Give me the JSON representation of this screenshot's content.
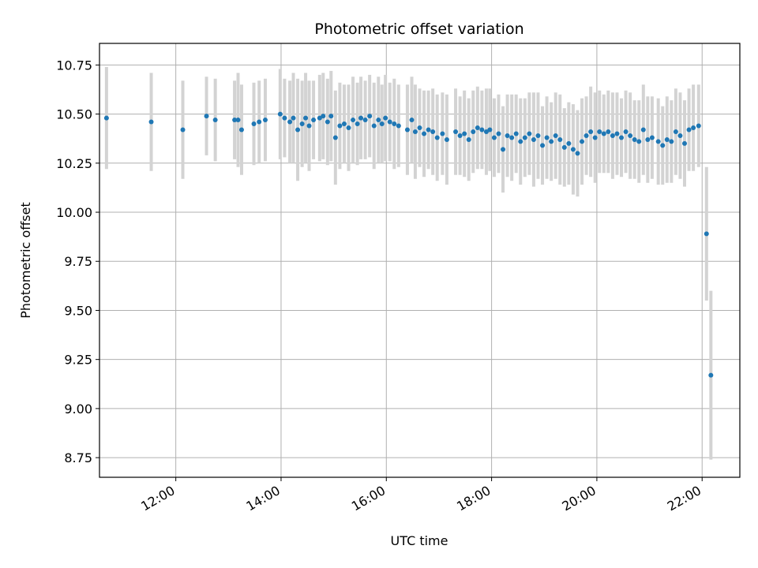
{
  "chart_data": {
    "type": "scatter",
    "title": "Photometric offset variation",
    "xlabel": "UTC time",
    "ylabel": "Photometric offset",
    "x_ticks": [
      "12:00",
      "14:00",
      "16:00",
      "18:00",
      "20:00",
      "22:00"
    ],
    "y_ticks": [
      "8.75",
      "9.00",
      "9.25",
      "9.50",
      "9.75",
      "10.00",
      "10.25",
      "10.50",
      "10.75"
    ],
    "xlim": [
      "10:33",
      "22:43"
    ],
    "ylim": [
      8.65,
      10.86
    ],
    "grid": true,
    "colors": {
      "point": "#1f77b4",
      "errorbar": "#d3d3d3",
      "grid": "#b0b0b0"
    },
    "series": [
      {
        "x": [
          "10:41",
          "11:32",
          "12:08",
          "12:35",
          "12:45",
          "13:07",
          "13:11",
          "13:15",
          "13:29",
          "13:35",
          "13:42",
          "13:59",
          "14:04",
          "14:10",
          "14:14",
          "14:19",
          "14:24",
          "14:28",
          "14:32",
          "14:37",
          "14:44",
          "14:48",
          "14:53",
          "14:57",
          "15:02",
          "15:07",
          "15:12",
          "15:17",
          "15:22",
          "15:27",
          "15:31",
          "15:36",
          "15:41",
          "15:46",
          "15:51",
          "15:55",
          "15:59",
          "16:04",
          "16:09",
          "16:14",
          "16:24",
          "16:29",
          "16:33",
          "16:38",
          "16:43",
          "16:48",
          "16:53",
          "16:58",
          "17:04",
          "17:09",
          "17:19",
          "17:24",
          "17:29",
          "17:34",
          "17:39",
          "17:44",
          "17:49",
          "17:54",
          "17:58",
          "18:03",
          "18:08",
          "18:13",
          "18:18",
          "18:23",
          "18:28",
          "18:33",
          "18:38",
          "18:43",
          "18:48",
          "18:53",
          "18:58",
          "19:03",
          "19:08",
          "19:13",
          "19:18",
          "19:23",
          "19:28",
          "19:33",
          "19:38",
          "19:43",
          "19:48",
          "19:53",
          "19:58",
          "20:03",
          "20:08",
          "20:13",
          "20:18",
          "20:23",
          "20:28",
          "20:33",
          "20:38",
          "20:43",
          "20:48",
          "20:53",
          "20:58",
          "21:03",
          "21:10",
          "21:15",
          "21:20",
          "21:25",
          "21:30",
          "21:35",
          "21:40",
          "21:45",
          "21:50",
          "21:56",
          "22:05",
          "22:10"
        ],
        "y": [
          10.48,
          10.46,
          10.42,
          10.49,
          10.47,
          10.47,
          10.47,
          10.42,
          10.45,
          10.46,
          10.47,
          10.5,
          10.48,
          10.46,
          10.48,
          10.42,
          10.45,
          10.48,
          10.44,
          10.47,
          10.48,
          10.49,
          10.46,
          10.49,
          10.38,
          10.44,
          10.45,
          10.43,
          10.47,
          10.45,
          10.48,
          10.47,
          10.49,
          10.44,
          10.47,
          10.45,
          10.48,
          10.46,
          10.45,
          10.44,
          10.42,
          10.47,
          10.41,
          10.43,
          10.4,
          10.42,
          10.41,
          10.38,
          10.4,
          10.37,
          10.41,
          10.39,
          10.4,
          10.37,
          10.41,
          10.43,
          10.42,
          10.41,
          10.42,
          10.38,
          10.4,
          10.32,
          10.39,
          10.38,
          10.4,
          10.36,
          10.38,
          10.4,
          10.37,
          10.39,
          10.34,
          10.38,
          10.36,
          10.39,
          10.37,
          10.33,
          10.35,
          10.32,
          10.3,
          10.36,
          10.39,
          10.41,
          10.38,
          10.41,
          10.4,
          10.41,
          10.39,
          10.4,
          10.38,
          10.41,
          10.39,
          10.37,
          10.36,
          10.42,
          10.37,
          10.38,
          10.36,
          10.34,
          10.37,
          10.36,
          10.41,
          10.39,
          10.35,
          10.42,
          10.43,
          10.44,
          9.89,
          9.17
        ],
        "err": [
          0.26,
          0.25,
          0.25,
          0.2,
          0.21,
          0.2,
          0.24,
          0.23,
          0.21,
          0.21,
          0.21,
          0.23,
          0.2,
          0.21,
          0.23,
          0.26,
          0.22,
          0.23,
          0.23,
          0.2,
          0.22,
          0.22,
          0.22,
          0.23,
          0.24,
          0.22,
          0.2,
          0.22,
          0.22,
          0.21,
          0.21,
          0.2,
          0.21,
          0.22,
          0.22,
          0.2,
          0.22,
          0.2,
          0.23,
          0.21,
          0.23,
          0.22,
          0.24,
          0.2,
          0.22,
          0.2,
          0.22,
          0.22,
          0.21,
          0.23,
          0.22,
          0.2,
          0.22,
          0.21,
          0.21,
          0.21,
          0.2,
          0.22,
          0.21,
          0.2,
          0.2,
          0.22,
          0.21,
          0.22,
          0.2,
          0.22,
          0.2,
          0.21,
          0.24,
          0.22,
          0.2,
          0.21,
          0.2,
          0.22,
          0.23,
          0.2,
          0.21,
          0.23,
          0.22,
          0.22,
          0.2,
          0.23,
          0.23,
          0.21,
          0.2,
          0.21,
          0.22,
          0.21,
          0.2,
          0.21,
          0.22,
          0.2,
          0.21,
          0.23,
          0.22,
          0.21,
          0.22,
          0.2,
          0.22,
          0.21,
          0.22,
          0.22,
          0.22,
          0.21,
          0.22,
          0.21,
          0.34,
          0.43
        ]
      }
    ]
  }
}
